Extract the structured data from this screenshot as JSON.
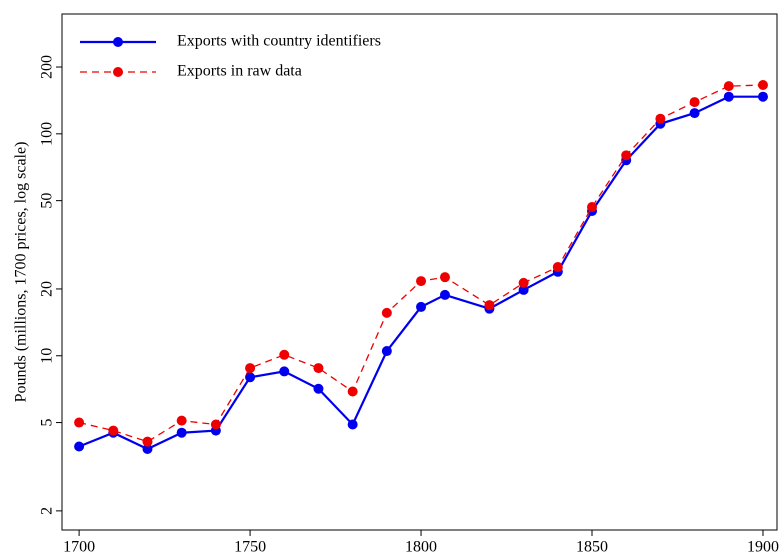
{
  "chart_data": {
    "type": "line",
    "y_label": "Pounds (millions, 1700 prices, log scale)",
    "x": [
      1700,
      1710,
      1720,
      1730,
      1740,
      1750,
      1760,
      1770,
      1780,
      1790,
      1800,
      1807,
      1820,
      1830,
      1840,
      1850,
      1860,
      1870,
      1880,
      1890,
      1900
    ],
    "series": [
      {
        "name": "Exports with country identifiers",
        "color": "#0000ee",
        "dash": "solid",
        "values": [
          3.9,
          4.5,
          3.8,
          4.5,
          4.6,
          8.0,
          8.5,
          7.1,
          4.9,
          10.5,
          16.6,
          18.8,
          16.3,
          19.8,
          23.9,
          44.9,
          76,
          111,
          124,
          147,
          147
        ]
      },
      {
        "name": "Exports in raw data",
        "color": "#ee0000",
        "dash": "dashed",
        "values": [
          5.0,
          4.6,
          4.1,
          5.1,
          4.9,
          8.8,
          10.1,
          8.8,
          6.9,
          15.6,
          21.7,
          22.6,
          16.9,
          21.3,
          25.1,
          46.8,
          80,
          117,
          139,
          164,
          166
        ]
      }
    ],
    "xlim": [
      1695.0,
      1904.1
    ],
    "xticks": [
      1700,
      1750,
      1800,
      1850,
      1900
    ],
    "ylim": [
      1.64,
      346.7
    ],
    "yticks": [
      2,
      5,
      10,
      20,
      50,
      100,
      200
    ],
    "log_y": true,
    "legend": "top-left"
  }
}
